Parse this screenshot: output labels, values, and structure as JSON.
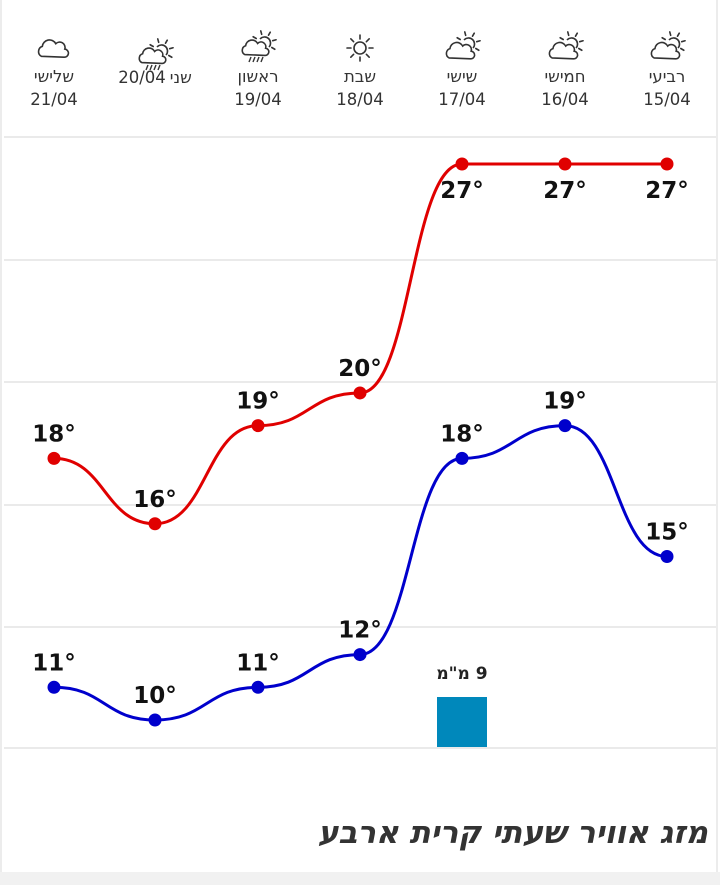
{
  "days": [
    {
      "name": "רביעי",
      "date": "15/04",
      "icon": "partly-cloudy-sun-icon"
    },
    {
      "name": "חמישי",
      "date": "16/04",
      "icon": "partly-cloudy-sun-icon"
    },
    {
      "name": "שישי",
      "date": "17/04",
      "icon": "partly-cloudy-sun-icon"
    },
    {
      "name": "שבת",
      "date": "18/04",
      "icon": "sun-icon"
    },
    {
      "name": "ראשון",
      "date": "19/04",
      "icon": "sun-cloud-rain-icon"
    },
    {
      "name": "שני",
      "date": "20/04",
      "icon": "sun-cloud-rain-icon"
    },
    {
      "name": "שלישי",
      "date": "21/04",
      "icon": "cloud-icon"
    }
  ],
  "chart_data": {
    "type": "line",
    "categories": [
      "15/04",
      "16/04",
      "17/04",
      "18/04",
      "19/04",
      "20/04",
      "21/04"
    ],
    "series": [
      {
        "name": "",
        "color": "#e00000",
        "values": [
          27,
          27,
          27,
          20,
          19,
          16,
          18
        ],
        "labels": [
          "27°",
          "27°",
          "27°",
          "20°",
          "19°",
          "16°",
          "18°"
        ]
      },
      {
        "name": "",
        "color": "#0000cc",
        "values": [
          15,
          19,
          18,
          12,
          11,
          10,
          11
        ],
        "labels": [
          "15°",
          "19°",
          "18°",
          "12°",
          "11°",
          "10°",
          "11°"
        ]
      }
    ],
    "precipitation": {
      "day": "17/04",
      "value": 9,
      "label": "9 מ\"מ",
      "color": "#0088bb"
    },
    "ylim": [
      6,
      30
    ],
    "grid": true
  },
  "footer": {
    "title": "מזג אוויר שעתי קרית ארבע"
  }
}
